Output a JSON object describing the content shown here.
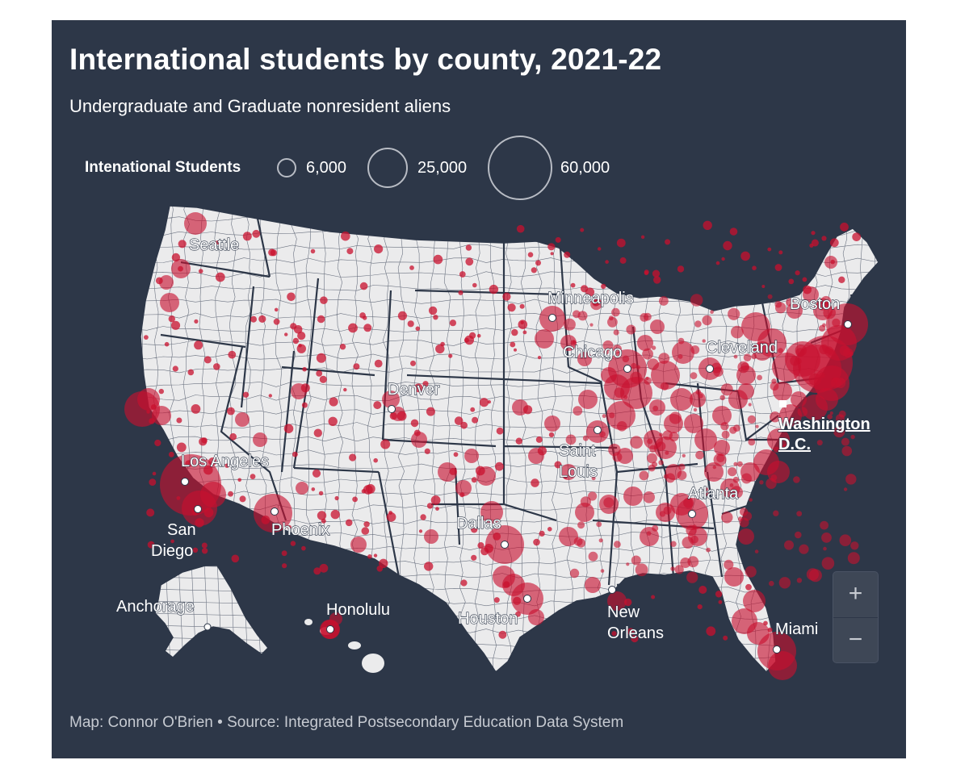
{
  "title": "International students by county, 2021-22",
  "subtitle": "Undergraduate and Graduate nonresident aliens",
  "legend": {
    "title": "Intenational Students",
    "items": [
      {
        "value": 6000,
        "label": "6,000"
      },
      {
        "value": 25000,
        "label": "25,000"
      },
      {
        "value": 60000,
        "label": "60,000"
      }
    ]
  },
  "colors": {
    "background": "#2d3748",
    "land": "#ebebec",
    "county_border": "#6b7280",
    "state_border": "#2d3748",
    "bubble": "#c8102e"
  },
  "cities": [
    {
      "name": "Seattle",
      "label": "Seattle"
    },
    {
      "name": "Minneapolis",
      "label": "Minneapolis"
    },
    {
      "name": "Boston",
      "label": "Boston"
    },
    {
      "name": "Chicago",
      "label": "Chicago"
    },
    {
      "name": "Cleveland",
      "label": "Cleveland"
    },
    {
      "name": "Denver",
      "label": "Denver"
    },
    {
      "name": "Washington D.C.",
      "label_line1": "Washington",
      "label_line2": "D.C."
    },
    {
      "name": "Saint Louis",
      "label_line1": "Saint",
      "label_line2": "Louis"
    },
    {
      "name": "Los Angeles",
      "label": "Los Angeles"
    },
    {
      "name": "Atlanta",
      "label": "Atlanta"
    },
    {
      "name": "San Diego",
      "label_line1": "San",
      "label_line2": "Diego"
    },
    {
      "name": "Phoenix",
      "label": "Phoenix"
    },
    {
      "name": "Dallas",
      "label": "Dallas"
    },
    {
      "name": "Anchorage",
      "label": "Anchorage"
    },
    {
      "name": "Honolulu",
      "label": "Honolulu"
    },
    {
      "name": "Houston",
      "label": "Houston"
    },
    {
      "name": "New Orleans",
      "label_line1": "New",
      "label_line2": "Orleans"
    },
    {
      "name": "Miami",
      "label": "Miami"
    }
  ],
  "zoom": {
    "in_label": "+",
    "out_label": "−"
  },
  "credit": "Map: Connor O'Brien • Source: Integrated Postsecondary Education Data System"
}
